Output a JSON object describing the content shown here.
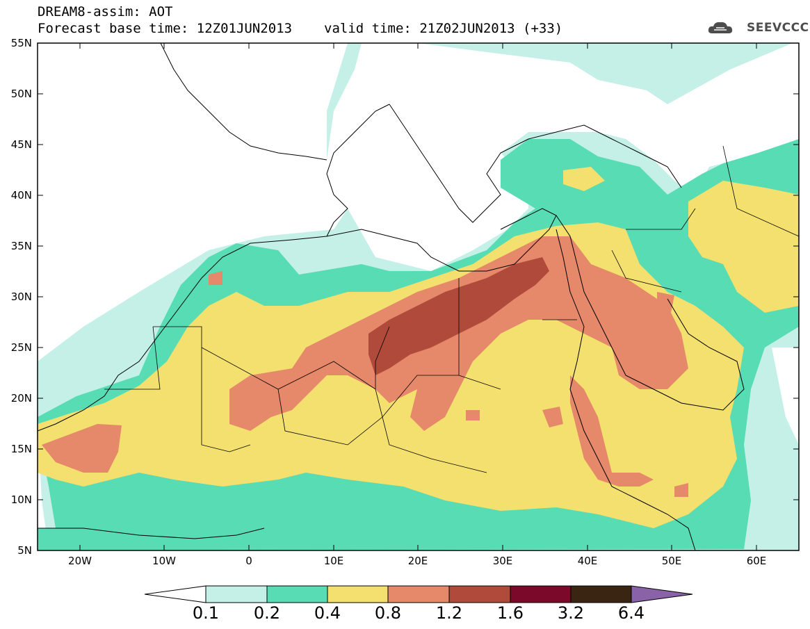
{
  "header": {
    "line1": "DREAM8-assim: AOT",
    "base_time": "Forecast base time: 12Z01JUN2013",
    "valid_time": "valid time: 21Z02JUN2013 (+33)"
  },
  "logo": {
    "text": "SEEVCCC",
    "icon": "cloud-icon"
  },
  "axes": {
    "lat_labels": [
      "55N",
      "50N",
      "45N",
      "40N",
      "35N",
      "30N",
      "25N",
      "20N",
      "15N",
      "10N",
      "5N"
    ],
    "lon_labels": [
      "20W",
      "10W",
      "0",
      "10E",
      "20E",
      "30E",
      "40E",
      "50E",
      "60E"
    ],
    "lat_range": [
      5,
      55
    ],
    "lon_range": [
      -25,
      65
    ]
  },
  "colorbar": {
    "labels": [
      "0.1",
      "0.2",
      "0.4",
      "0.8",
      "1.2",
      "1.6",
      "3.2",
      "6.4"
    ],
    "colors": [
      "#ffffff",
      "#c5f0e8",
      "#57dcb4",
      "#f4e06e",
      "#e5896a",
      "#b04a3a",
      "#7b0a2a",
      "#3a2412",
      "#8a62a8"
    ]
  },
  "field_colors": {
    "bg": "#ffffff",
    "c01": "#c5f0e8",
    "c02": "#57dcb4",
    "c04": "#f4e06e",
    "c08": "#e5896a",
    "c12": "#b04a3a"
  }
}
